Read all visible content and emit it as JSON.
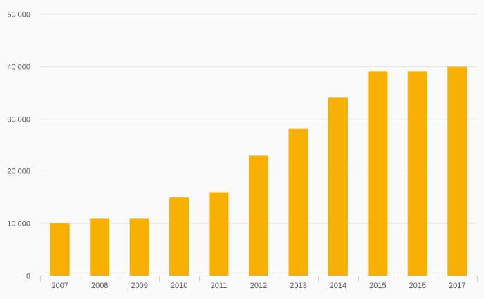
{
  "chart_data": {
    "type": "bar",
    "title": "",
    "xlabel": "",
    "ylabel": "",
    "categories": [
      "2007",
      "2008",
      "2009",
      "2010",
      "2011",
      "2012",
      "2013",
      "2014",
      "2015",
      "2016",
      "2017"
    ],
    "values": [
      10000,
      10900,
      10900,
      14900,
      15900,
      22900,
      28000,
      34000,
      39000,
      39000,
      39900
    ],
    "ylim": [
      0,
      50000
    ],
    "yticks": [
      0,
      10000,
      20000,
      30000,
      40000,
      50000
    ],
    "ytick_labels": [
      "0",
      "10 000",
      "20 000",
      "30 000",
      "40 000",
      "50 000"
    ],
    "grid": true,
    "legend": "none",
    "colors": {
      "bar": "#f8b002",
      "grid": "#e6e6e6",
      "axis": "#cccccc",
      "tick_text": "#555555",
      "background": "#fafafa"
    }
  }
}
